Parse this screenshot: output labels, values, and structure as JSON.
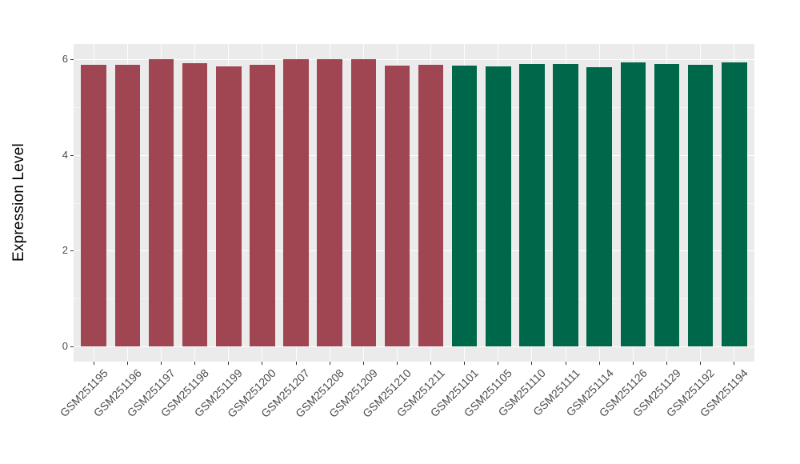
{
  "chart_data": {
    "type": "bar",
    "title": "",
    "xlabel": "",
    "ylabel": "Expression Level",
    "categories": [
      "GSM251195",
      "GSM251196",
      "GSM251197",
      "GSM251198",
      "GSM251199",
      "GSM251200",
      "GSM251207",
      "GSM251208",
      "GSM251209",
      "GSM251210",
      "GSM251211",
      "GSM251101",
      "GSM251105",
      "GSM251110",
      "GSM251111",
      "GSM251114",
      "GSM251126",
      "GSM251129",
      "GSM251192",
      "GSM251194"
    ],
    "values": [
      5.88,
      5.88,
      6.01,
      5.92,
      5.86,
      5.88,
      6.0,
      6.0,
      6.0,
      5.87,
      5.89,
      5.87,
      5.85,
      5.9,
      5.9,
      5.83,
      5.94,
      5.91,
      5.88,
      5.93
    ],
    "bar_groups": [
      "group1",
      "group1",
      "group1",
      "group1",
      "group1",
      "group1",
      "group1",
      "group1",
      "group1",
      "group1",
      "group1",
      "group2",
      "group2",
      "group2",
      "group2",
      "group2",
      "group2",
      "group2",
      "group2",
      "group2"
    ],
    "group_colors": {
      "group1": "#A04552",
      "group2": "#00684A"
    },
    "y_major_ticks": [
      0,
      2,
      4,
      6
    ],
    "y_minor_ticks": [
      1,
      3,
      5
    ],
    "ylim": [
      -0.32,
      6.32
    ],
    "grid": "on",
    "legend": "none",
    "bar_width_fraction": 0.75,
    "x_label_angle": -45,
    "panel_bg": "#EBEBEB",
    "grid_color": "#FFFFFF",
    "tick_label_color": "#4D4D4D",
    "axis_title_color": "#000000"
  }
}
